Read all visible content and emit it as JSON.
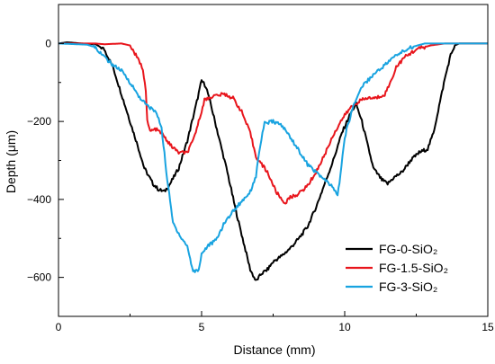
{
  "chart_data": {
    "type": "line",
    "xlabel": "Distance (mm)",
    "ylabel": "Depth (μm)",
    "xlim": [
      0,
      15
    ],
    "ylim": [
      -700,
      100
    ],
    "x_ticks": [
      0,
      5,
      10,
      15
    ],
    "y_ticks": [
      0,
      -200,
      -400,
      -600
    ],
    "grid": false,
    "legend_position": "bottom-right",
    "series": [
      {
        "name": "FG-0-SiO₂",
        "color": "#000000",
        "points": [
          [
            0,
            0
          ],
          [
            0.3,
            3
          ],
          [
            0.8,
            0
          ],
          [
            1.3,
            -2
          ],
          [
            1.6,
            -15
          ],
          [
            1.9,
            -60
          ],
          [
            2.2,
            -130
          ],
          [
            2.5,
            -200
          ],
          [
            2.8,
            -270
          ],
          [
            3.0,
            -320
          ],
          [
            3.3,
            -360
          ],
          [
            3.5,
            -375
          ],
          [
            3.7,
            -380
          ],
          [
            3.9,
            -360
          ],
          [
            4.2,
            -320
          ],
          [
            4.5,
            -250
          ],
          [
            4.8,
            -160
          ],
          [
            5.0,
            -95
          ],
          [
            5.15,
            -110
          ],
          [
            5.3,
            -150
          ],
          [
            5.6,
            -240
          ],
          [
            5.9,
            -330
          ],
          [
            6.2,
            -430
          ],
          [
            6.5,
            -520
          ],
          [
            6.7,
            -580
          ],
          [
            6.9,
            -610
          ],
          [
            7.1,
            -590
          ],
          [
            7.3,
            -580
          ],
          [
            7.5,
            -560
          ],
          [
            7.8,
            -545
          ],
          [
            8.1,
            -525
          ],
          [
            8.4,
            -500
          ],
          [
            8.7,
            -470
          ],
          [
            9.0,
            -420
          ],
          [
            9.3,
            -360
          ],
          [
            9.6,
            -300
          ],
          [
            9.9,
            -230
          ],
          [
            10.2,
            -180
          ],
          [
            10.4,
            -155
          ],
          [
            10.6,
            -200
          ],
          [
            10.8,
            -260
          ],
          [
            11.0,
            -320
          ],
          [
            11.3,
            -350
          ],
          [
            11.5,
            -360
          ],
          [
            11.7,
            -345
          ],
          [
            12.0,
            -330
          ],
          [
            12.3,
            -300
          ],
          [
            12.6,
            -280
          ],
          [
            12.9,
            -270
          ],
          [
            13.1,
            -230
          ],
          [
            13.3,
            -160
          ],
          [
            13.5,
            -90
          ],
          [
            13.7,
            -30
          ],
          [
            13.85,
            -5
          ],
          [
            14.0,
            0
          ],
          [
            14.5,
            0
          ],
          [
            15,
            0
          ]
        ]
      },
      {
        "name": "FG-1.5-SiO₂",
        "color": "#e8151c",
        "points": [
          [
            0,
            0
          ],
          [
            1.3,
            0
          ],
          [
            1.6,
            -2
          ],
          [
            2.2,
            0
          ],
          [
            2.5,
            -5
          ],
          [
            2.7,
            -30
          ],
          [
            2.95,
            -65
          ],
          [
            3.05,
            -120
          ],
          [
            3.1,
            -200
          ],
          [
            3.2,
            -225
          ],
          [
            3.4,
            -220
          ],
          [
            3.6,
            -230
          ],
          [
            3.9,
            -260
          ],
          [
            4.2,
            -280
          ],
          [
            4.5,
            -280
          ],
          [
            4.7,
            -250
          ],
          [
            4.9,
            -200
          ],
          [
            5.1,
            -145
          ],
          [
            5.4,
            -135
          ],
          [
            5.8,
            -130
          ],
          [
            6.1,
            -140
          ],
          [
            6.4,
            -175
          ],
          [
            6.7,
            -230
          ],
          [
            6.9,
            -290
          ],
          [
            7.1,
            -310
          ],
          [
            7.3,
            -330
          ],
          [
            7.6,
            -380
          ],
          [
            7.9,
            -410
          ],
          [
            8.1,
            -395
          ],
          [
            8.4,
            -385
          ],
          [
            8.7,
            -365
          ],
          [
            9.0,
            -330
          ],
          [
            9.3,
            -285
          ],
          [
            9.6,
            -235
          ],
          [
            9.9,
            -195
          ],
          [
            10.2,
            -165
          ],
          [
            10.5,
            -148
          ],
          [
            10.8,
            -140
          ],
          [
            11.1,
            -140
          ],
          [
            11.4,
            -130
          ],
          [
            11.6,
            -100
          ],
          [
            11.8,
            -60
          ],
          [
            12.1,
            -35
          ],
          [
            12.5,
            -15
          ],
          [
            13.0,
            -5
          ],
          [
            13.5,
            0
          ],
          [
            15,
            0
          ]
        ]
      },
      {
        "name": "FG-3-SiO₂",
        "color": "#18a3e0",
        "points": [
          [
            0,
            0
          ],
          [
            1.0,
            -3
          ],
          [
            1.3,
            -10
          ],
          [
            1.6,
            -35
          ],
          [
            1.9,
            -55
          ],
          [
            2.2,
            -70
          ],
          [
            2.5,
            -100
          ],
          [
            2.8,
            -135
          ],
          [
            3.1,
            -160
          ],
          [
            3.4,
            -175
          ],
          [
            3.6,
            -215
          ],
          [
            3.8,
            -350
          ],
          [
            4.0,
            -460
          ],
          [
            4.3,
            -500
          ],
          [
            4.5,
            -520
          ],
          [
            4.7,
            -585
          ],
          [
            4.9,
            -580
          ],
          [
            5.0,
            -540
          ],
          [
            5.2,
            -520
          ],
          [
            5.5,
            -505
          ],
          [
            5.8,
            -460
          ],
          [
            6.1,
            -430
          ],
          [
            6.4,
            -405
          ],
          [
            6.7,
            -380
          ],
          [
            6.9,
            -340
          ],
          [
            7.05,
            -260
          ],
          [
            7.2,
            -205
          ],
          [
            7.5,
            -200
          ],
          [
            7.8,
            -210
          ],
          [
            8.1,
            -240
          ],
          [
            8.4,
            -275
          ],
          [
            8.7,
            -310
          ],
          [
            9.0,
            -330
          ],
          [
            9.3,
            -350
          ],
          [
            9.6,
            -370
          ],
          [
            9.75,
            -390
          ],
          [
            9.85,
            -340
          ],
          [
            10.0,
            -240
          ],
          [
            10.3,
            -160
          ],
          [
            10.6,
            -110
          ],
          [
            11.0,
            -80
          ],
          [
            11.4,
            -55
          ],
          [
            11.8,
            -30
          ],
          [
            12.3,
            -10
          ],
          [
            12.8,
            0
          ],
          [
            13.5,
            0
          ],
          [
            15,
            0
          ]
        ]
      }
    ]
  }
}
